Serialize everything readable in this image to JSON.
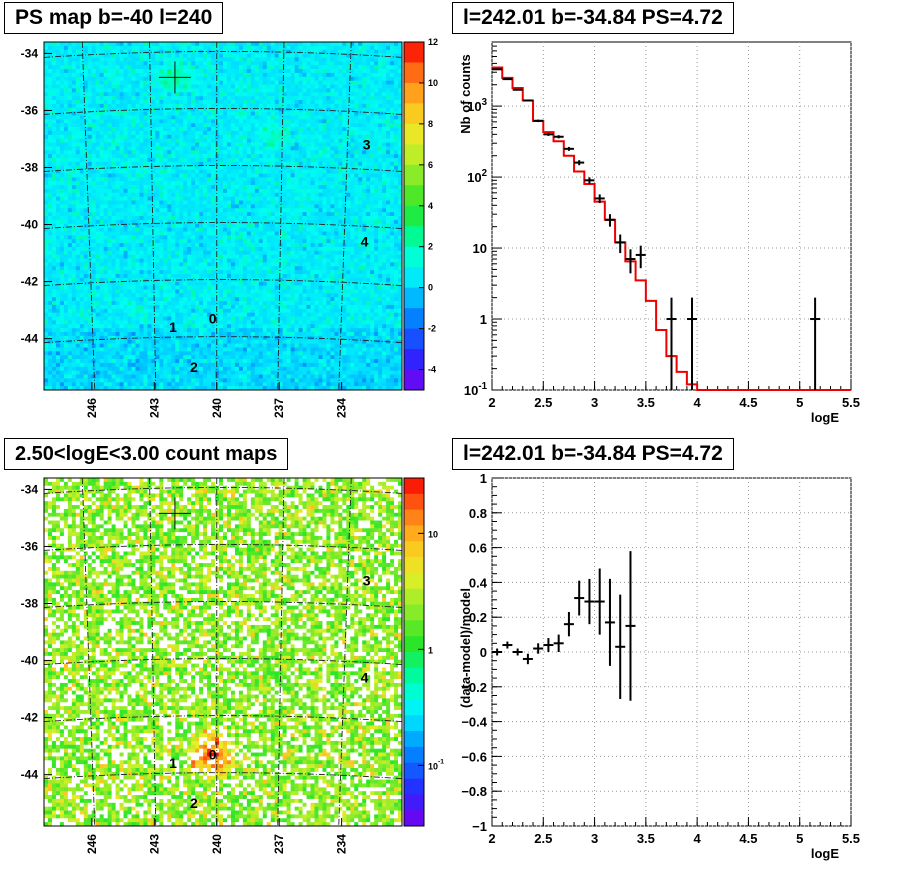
{
  "panels": {
    "top_left_title": "PS map b=-40 l=240",
    "top_right_title": "l=242.01 b=-34.84 PS=4.72",
    "bottom_left_title": "2.50<logE<3.00 count maps",
    "bottom_right_title": "l=242.01 b=-34.84 PS=4.72"
  },
  "chart_data": [
    {
      "type": "heatmap",
      "title": "PS map b=-40 l=240",
      "x_tick_labels": [
        "246",
        "243",
        "240",
        "237",
        "234"
      ],
      "y_tick_labels": [
        "-34",
        "-36",
        "-38",
        "-40",
        "-42",
        "-44"
      ],
      "colorbar_ticks": [
        "12",
        "10",
        "8",
        "6",
        "4",
        "2",
        "0",
        "-2",
        "-4"
      ],
      "colorbar_range": [
        -5,
        12
      ],
      "source_labels": [
        {
          "label": "0",
          "l": 240.2,
          "b": -43.3
        },
        {
          "label": "1",
          "l": 242.1,
          "b": -43.6
        },
        {
          "label": "2",
          "l": 241.1,
          "b": -45.0
        },
        {
          "label": "3",
          "l": 232.8,
          "b": -37.2
        },
        {
          "label": "4",
          "l": 232.9,
          "b": -40.6
        }
      ],
      "marker": {
        "l": 242.01,
        "b": -34.84
      },
      "background_level": 1.0
    },
    {
      "type": "line",
      "title": "l=242.01 b=-34.84 PS=4.72",
      "xlabel": "logE",
      "ylabel": "Nb of counts",
      "yscale": "log",
      "xlim": [
        2,
        5.5
      ],
      "ylim": [
        0.1,
        8000
      ],
      "x_tick_labels": [
        "2",
        "2.5",
        "3",
        "3.5",
        "4",
        "4.5",
        "5",
        "5.5"
      ],
      "y_tick_labels": [
        "10^-1",
        "1",
        "10",
        "10^2",
        "10^3"
      ],
      "grid": true,
      "series": [
        {
          "style": "points-with-errors",
          "x": [
            2.05,
            2.15,
            2.25,
            2.35,
            2.45,
            2.55,
            2.65,
            2.75,
            2.85,
            2.95,
            3.05,
            3.15,
            3.25,
            3.35,
            3.45,
            3.75,
            3.95,
            5.15
          ],
          "y": [
            3300,
            2400,
            1700,
            1200,
            620,
            400,
            370,
            250,
            160,
            90,
            50,
            25,
            12,
            7,
            8,
            1,
            1,
            1
          ],
          "yerr_lo": [
            60,
            50,
            40,
            35,
            25,
            20,
            19,
            16,
            13,
            9,
            7,
            5,
            3.5,
            2.6,
            2.8,
            0.9,
            0.9,
            0.9
          ],
          "yerr_hi": [
            60,
            50,
            40,
            35,
            25,
            20,
            19,
            16,
            13,
            9,
            7,
            5,
            3.5,
            2.6,
            2.8,
            1.0,
            1.0,
            1.0
          ]
        },
        {
          "style": "step",
          "color": "#ee0000",
          "edges": [
            2.0,
            2.1,
            2.2,
            2.3,
            2.4,
            2.5,
            2.6,
            2.7,
            2.8,
            2.9,
            3.0,
            3.1,
            3.2,
            3.3,
            3.4,
            3.5,
            3.6,
            3.7,
            3.8,
            3.9,
            4.0,
            5.5
          ],
          "values": [
            3500,
            2500,
            1800,
            1200,
            620,
            430,
            320,
            200,
            120,
            80,
            45,
            25,
            12,
            6.5,
            3.5,
            1.8,
            0.7,
            0.3,
            0.18,
            0.12,
            0.1
          ]
        }
      ]
    },
    {
      "type": "heatmap",
      "title": "2.50<logE<3.00 count maps",
      "x_tick_labels": [
        "246",
        "243",
        "240",
        "237",
        "234"
      ],
      "y_tick_labels": [
        "-34",
        "-36",
        "-38",
        "-40",
        "-42",
        "-44"
      ],
      "colorbar_ticks": [
        "10",
        "1",
        "10^-1"
      ],
      "colorbar_scale": "log",
      "source_labels": [
        {
          "label": "0",
          "l": 240.2,
          "b": -43.3
        },
        {
          "label": "1",
          "l": 242.1,
          "b": -43.6
        },
        {
          "label": "2",
          "l": 241.1,
          "b": -45.0
        },
        {
          "label": "3",
          "l": 232.8,
          "b": -37.2
        },
        {
          "label": "4",
          "l": 232.9,
          "b": -40.6
        }
      ],
      "marker": {
        "l": 242.01,
        "b": -34.84
      },
      "hotspot": {
        "l": 240.3,
        "b": -43.3
      }
    },
    {
      "type": "scatter",
      "title": "l=242.01 b=-34.84 PS=4.72",
      "xlabel": "logE",
      "ylabel": "(data-model)/model",
      "xlim": [
        2,
        5.5
      ],
      "ylim": [
        -1,
        1
      ],
      "x_tick_labels": [
        "2",
        "2.5",
        "3",
        "3.5",
        "4",
        "4.5",
        "5",
        "5.5"
      ],
      "y_tick_labels": [
        "1",
        "0.8",
        "0.6",
        "0.4",
        "0.2",
        "0",
        "−0.2",
        "−0.4",
        "−0.6",
        "−0.8",
        "−1"
      ],
      "grid": true,
      "series": [
        {
          "style": "points-with-errors",
          "x": [
            2.05,
            2.15,
            2.25,
            2.35,
            2.45,
            2.55,
            2.65,
            2.75,
            2.85,
            2.95,
            3.05,
            3.15,
            3.25,
            3.35
          ],
          "y": [
            0.0,
            0.04,
            0.0,
            -0.04,
            0.02,
            0.04,
            0.05,
            0.16,
            0.31,
            0.29,
            0.29,
            0.17,
            0.03,
            0.15
          ],
          "yerr": [
            0.02,
            0.02,
            0.02,
            0.03,
            0.03,
            0.04,
            0.05,
            0.07,
            0.1,
            0.13,
            0.19,
            0.25,
            0.3,
            0.43
          ]
        }
      ]
    }
  ]
}
